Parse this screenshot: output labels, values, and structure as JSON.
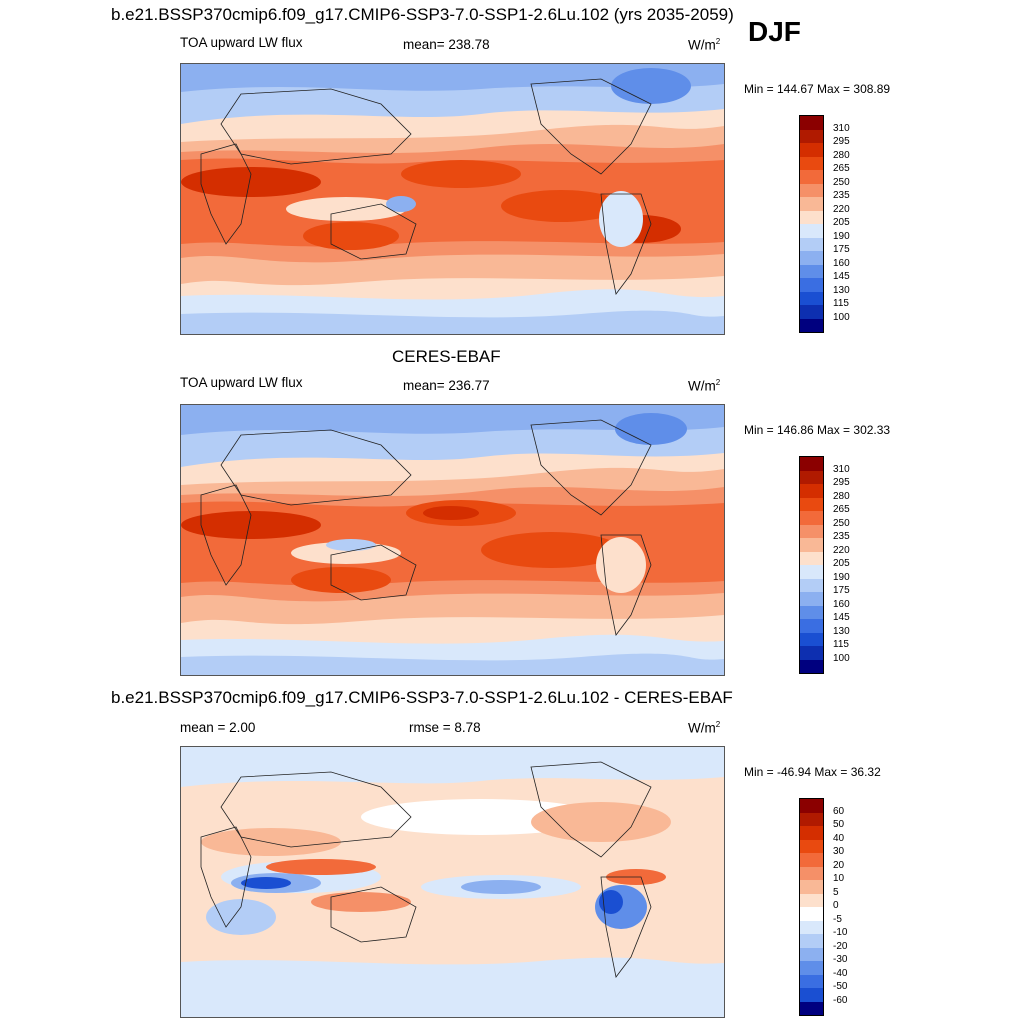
{
  "header": {
    "case_title": "b.e21.BSSP370cmip6.f09_g17.CMIP6-SSP3-7.0-SSP1-2.6Lu.102 (yrs 2035-2059)",
    "season": "DJF"
  },
  "panels": [
    {
      "title": "",
      "variable": "TOA upward LW flux",
      "mean_text": "mean= 238.78",
      "units": "W/m",
      "units_sup": "2",
      "minmax": "Min = 144.67 Max = 308.89",
      "colorbar_labels": [
        "310",
        "295",
        "280",
        "265",
        "250",
        "235",
        "220",
        "205",
        "190",
        "175",
        "160",
        "145",
        "130",
        "115",
        "100"
      ]
    },
    {
      "title": "CERES-EBAF",
      "variable": "TOA upward LW flux",
      "mean_text": "mean= 236.77",
      "units": "W/m",
      "units_sup": "2",
      "minmax": "Min = 146.86 Max = 302.33",
      "colorbar_labels": [
        "310",
        "295",
        "280",
        "265",
        "250",
        "235",
        "220",
        "205",
        "190",
        "175",
        "160",
        "145",
        "130",
        "115",
        "100"
      ]
    },
    {
      "title": "b.e21.BSSP370cmip6.f09_g17.CMIP6-SSP3-7.0-SSP1-2.6Lu.102 - CERES-EBAF",
      "mean_text": "mean =   2.00",
      "rmse_text": "rmse =   8.78",
      "units": "W/m",
      "units_sup": "2",
      "minmax": "Min = -46.94 Max =  36.32",
      "colorbar_labels": [
        "60",
        "50",
        "40",
        "30",
        "20",
        "10",
        "5",
        "0",
        "-5",
        "-10",
        "-20",
        "-30",
        "-40",
        "-50",
        "-60"
      ]
    }
  ],
  "colors": {
    "abs_scale": [
      "#8b0000",
      "#b01a00",
      "#d42e00",
      "#e94a10",
      "#f26a3a",
      "#f59068",
      "#f9b896",
      "#fde0cc",
      "#d9e8fb",
      "#b3cdf6",
      "#8cb0f0",
      "#5f8ee9",
      "#3a6ee2",
      "#1a4fd2",
      "#0d2fb0",
      "#00007f"
    ],
    "diff_scale": [
      "#8b0000",
      "#b01a00",
      "#d42e00",
      "#e94a10",
      "#f26a3a",
      "#f59068",
      "#f9b896",
      "#fde0cc",
      "#ffffff",
      "#d9e8fb",
      "#b3cdf6",
      "#8cb0f0",
      "#5f8ee9",
      "#3a6ee2",
      "#1a4fd2",
      "#00007f"
    ]
  },
  "chart_data": [
    {
      "type": "heatmap",
      "title": "b.e21.BSSP370cmip6.f09_g17.CMIP6-SSP3-7.0-SSP1-2.6Lu.102 (yrs 2035-2059)",
      "season": "DJF",
      "variable": "TOA upward LW flux",
      "units": "W/m2",
      "mean": 238.78,
      "min": 144.67,
      "max": 308.89,
      "contour_levels": [
        100,
        115,
        130,
        145,
        160,
        175,
        190,
        205,
        220,
        235,
        250,
        265,
        280,
        295,
        310
      ]
    },
    {
      "type": "heatmap",
      "title": "CERES-EBAF",
      "season": "DJF",
      "variable": "TOA upward LW flux",
      "units": "W/m2",
      "mean": 236.77,
      "min": 146.86,
      "max": 302.33,
      "contour_levels": [
        100,
        115,
        130,
        145,
        160,
        175,
        190,
        205,
        220,
        235,
        250,
        265,
        280,
        295,
        310
      ]
    },
    {
      "type": "heatmap",
      "title": "b.e21.BSSP370cmip6.f09_g17.CMIP6-SSP3-7.0-SSP1-2.6Lu.102 - CERES-EBAF",
      "season": "DJF",
      "units": "W/m2",
      "mean": 2.0,
      "rmse": 8.78,
      "min": -46.94,
      "max": 36.32,
      "contour_levels": [
        -60,
        -50,
        -40,
        -30,
        -20,
        -10,
        -5,
        0,
        5,
        10,
        20,
        30,
        40,
        50,
        60
      ]
    }
  ]
}
